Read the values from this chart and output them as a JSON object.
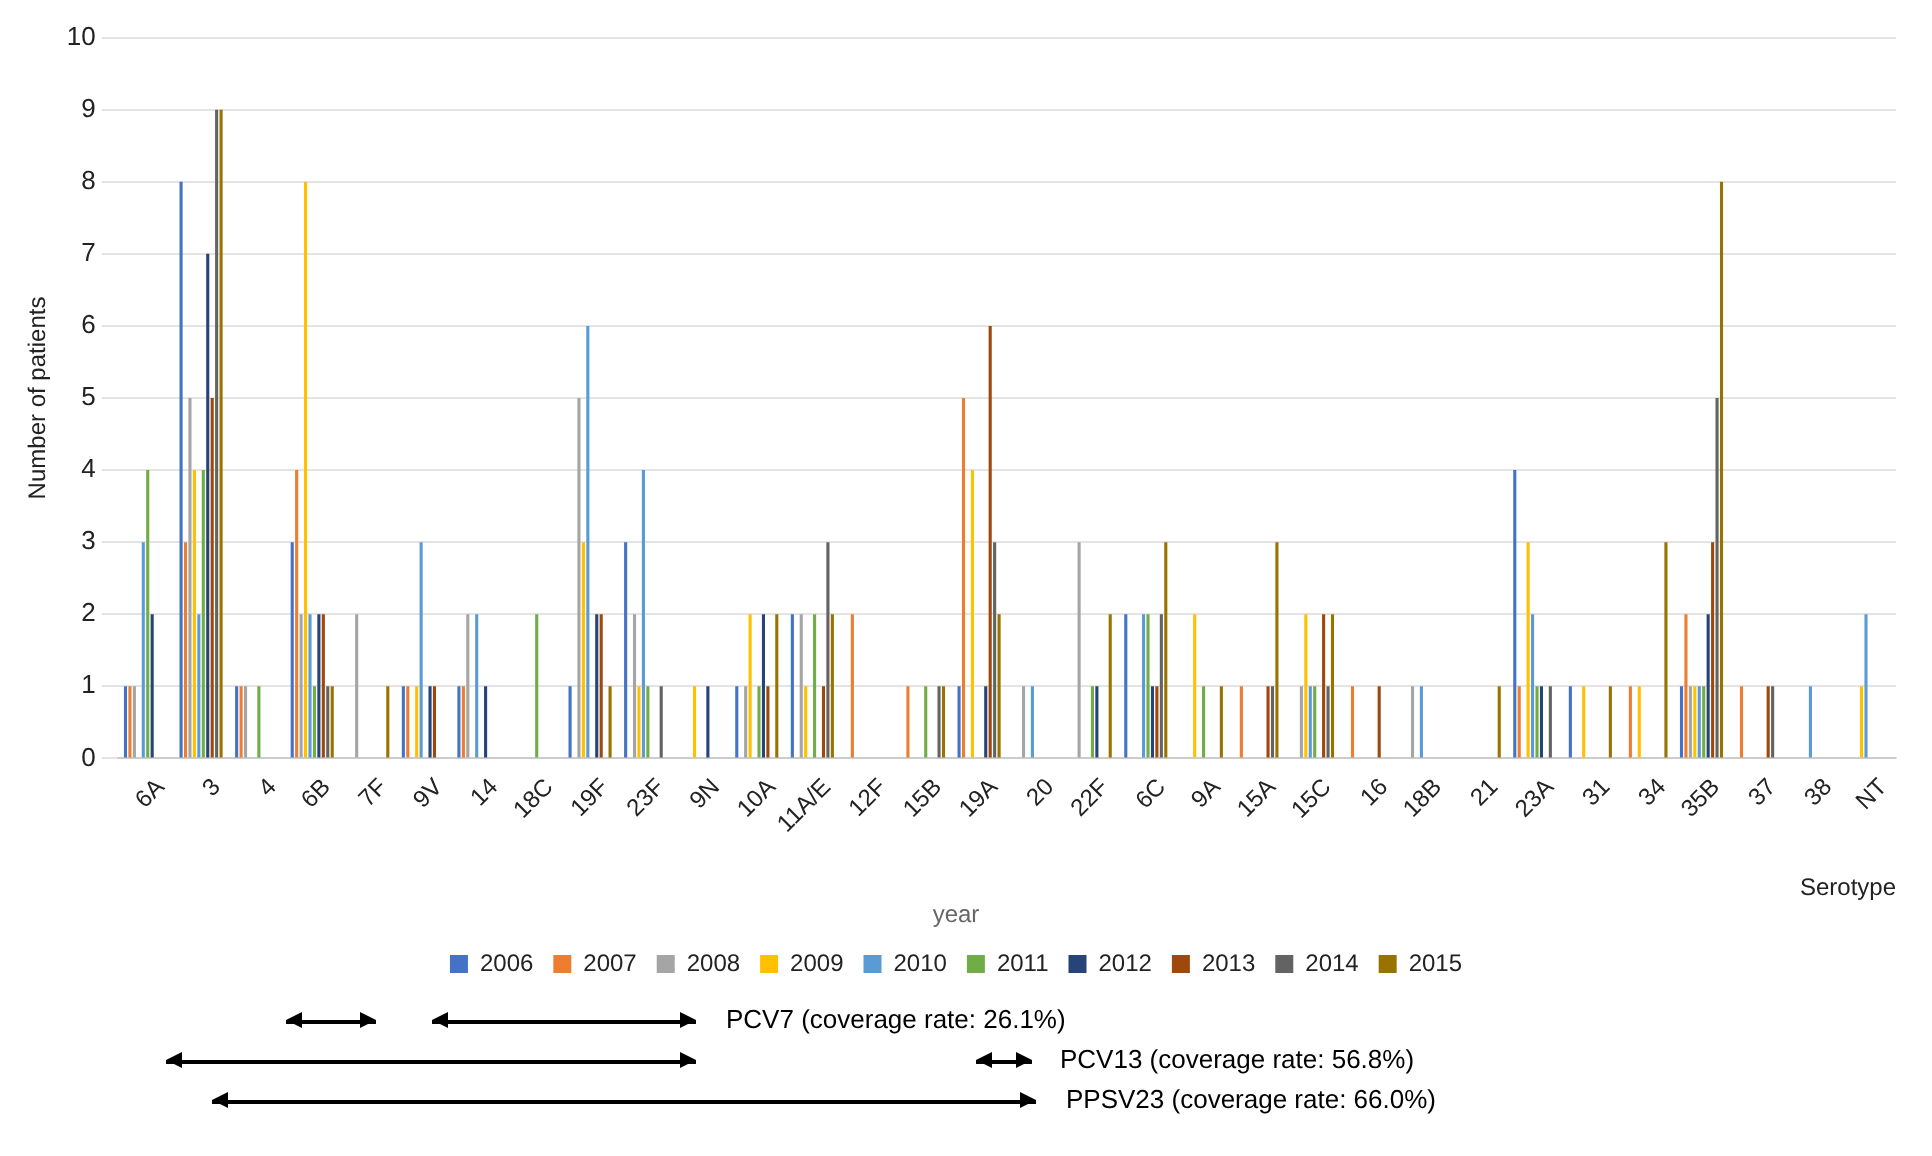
{
  "chart_data": {
    "type": "bar",
    "xlabel": "Serotype",
    "ylabel": "Number of patients",
    "legend_title": "year",
    "categories": [
      "6A",
      "3",
      "4",
      "6B",
      "7F",
      "9V",
      "14",
      "18C",
      "19F",
      "23F",
      "9N",
      "10A",
      "11A/E",
      "12F",
      "15B",
      "19A",
      "20",
      "22F",
      "6C",
      "9A",
      "15A",
      "15C",
      "16",
      "18B",
      "21",
      "23A",
      "31",
      "34",
      "35B",
      "37",
      "38",
      "NT"
    ],
    "series": [
      {
        "name": "2006",
        "color": "#4472c4",
        "values": [
          1,
          8,
          1,
          3,
          0,
          1,
          1,
          0,
          1,
          3,
          0,
          1,
          2,
          0,
          0,
          1,
          0,
          0,
          2,
          0,
          0,
          0,
          0,
          0,
          0,
          4,
          1,
          0,
          1,
          0,
          0,
          0
        ]
      },
      {
        "name": "2007",
        "color": "#ed7d31",
        "values": [
          1,
          3,
          1,
          4,
          0,
          1,
          1,
          0,
          0,
          0,
          0,
          0,
          0,
          2,
          1,
          5,
          0,
          0,
          0,
          0,
          1,
          0,
          1,
          0,
          0,
          1,
          0,
          1,
          2,
          1,
          0,
          0
        ]
      },
      {
        "name": "2008",
        "color": "#a5a5a5",
        "values": [
          1,
          5,
          1,
          2,
          2,
          0,
          2,
          0,
          5,
          2,
          0,
          1,
          2,
          0,
          0,
          0,
          1,
          3,
          0,
          0,
          0,
          1,
          0,
          1,
          0,
          0,
          0,
          0,
          1,
          0,
          0,
          0
        ]
      },
      {
        "name": "2009",
        "color": "#ffc000",
        "values": [
          0,
          4,
          0,
          8,
          0,
          1,
          0,
          0,
          3,
          1,
          1,
          2,
          1,
          0,
          0,
          4,
          0,
          0,
          0,
          2,
          0,
          2,
          0,
          0,
          0,
          3,
          1,
          1,
          1,
          0,
          0,
          1
        ]
      },
      {
        "name": "2010",
        "color": "#5b9bd5",
        "values": [
          3,
          2,
          0,
          2,
          0,
          3,
          2,
          0,
          6,
          4,
          0,
          0,
          0,
          0,
          0,
          0,
          1,
          0,
          2,
          0,
          0,
          1,
          0,
          1,
          0,
          2,
          0,
          0,
          1,
          0,
          1,
          2
        ]
      },
      {
        "name": "2011",
        "color": "#70ad47",
        "values": [
          4,
          4,
          1,
          1,
          0,
          0,
          0,
          2,
          0,
          1,
          0,
          1,
          2,
          0,
          1,
          0,
          0,
          1,
          2,
          1,
          0,
          1,
          0,
          0,
          0,
          1,
          0,
          0,
          1,
          0,
          0,
          0
        ]
      },
      {
        "name": "2012",
        "color": "#264478",
        "values": [
          2,
          7,
          0,
          2,
          0,
          1,
          1,
          0,
          2,
          0,
          1,
          2,
          0,
          0,
          0,
          1,
          0,
          1,
          1,
          0,
          0,
          0,
          0,
          0,
          0,
          1,
          0,
          0,
          2,
          0,
          0,
          0
        ]
      },
      {
        "name": "2013",
        "color": "#9e480e",
        "values": [
          0,
          5,
          0,
          2,
          0,
          1,
          0,
          0,
          2,
          0,
          0,
          1,
          1,
          0,
          0,
          6,
          0,
          0,
          1,
          0,
          1,
          2,
          1,
          0,
          0,
          0,
          0,
          0,
          3,
          1,
          0,
          0
        ]
      },
      {
        "name": "2014",
        "color": "#636363",
        "values": [
          0,
          9,
          0,
          1,
          0,
          0,
          0,
          0,
          0,
          1,
          0,
          0,
          3,
          0,
          1,
          3,
          0,
          0,
          2,
          0,
          1,
          1,
          0,
          0,
          0,
          1,
          0,
          0,
          5,
          1,
          0,
          0
        ]
      },
      {
        "name": "2015",
        "color": "#997300",
        "values": [
          0,
          9,
          0,
          1,
          1,
          0,
          0,
          0,
          1,
          0,
          0,
          2,
          2,
          0,
          1,
          2,
          0,
          2,
          3,
          1,
          3,
          2,
          0,
          0,
          1,
          0,
          1,
          3,
          8,
          0,
          0,
          0
        ]
      }
    ],
    "ylim": [
      0,
      10
    ],
    "yticks": [
      0,
      1,
      2,
      3,
      4,
      5,
      6,
      7,
      8,
      9,
      10
    ],
    "grid": "y",
    "legend": "bottom",
    "annotations": [
      "PCV7 (coverage rate: 26.1%)",
      "PCV13 (coverage rate: 56.8%)",
      "PPSV23 (coverage rate: 66.0%)"
    ]
  }
}
